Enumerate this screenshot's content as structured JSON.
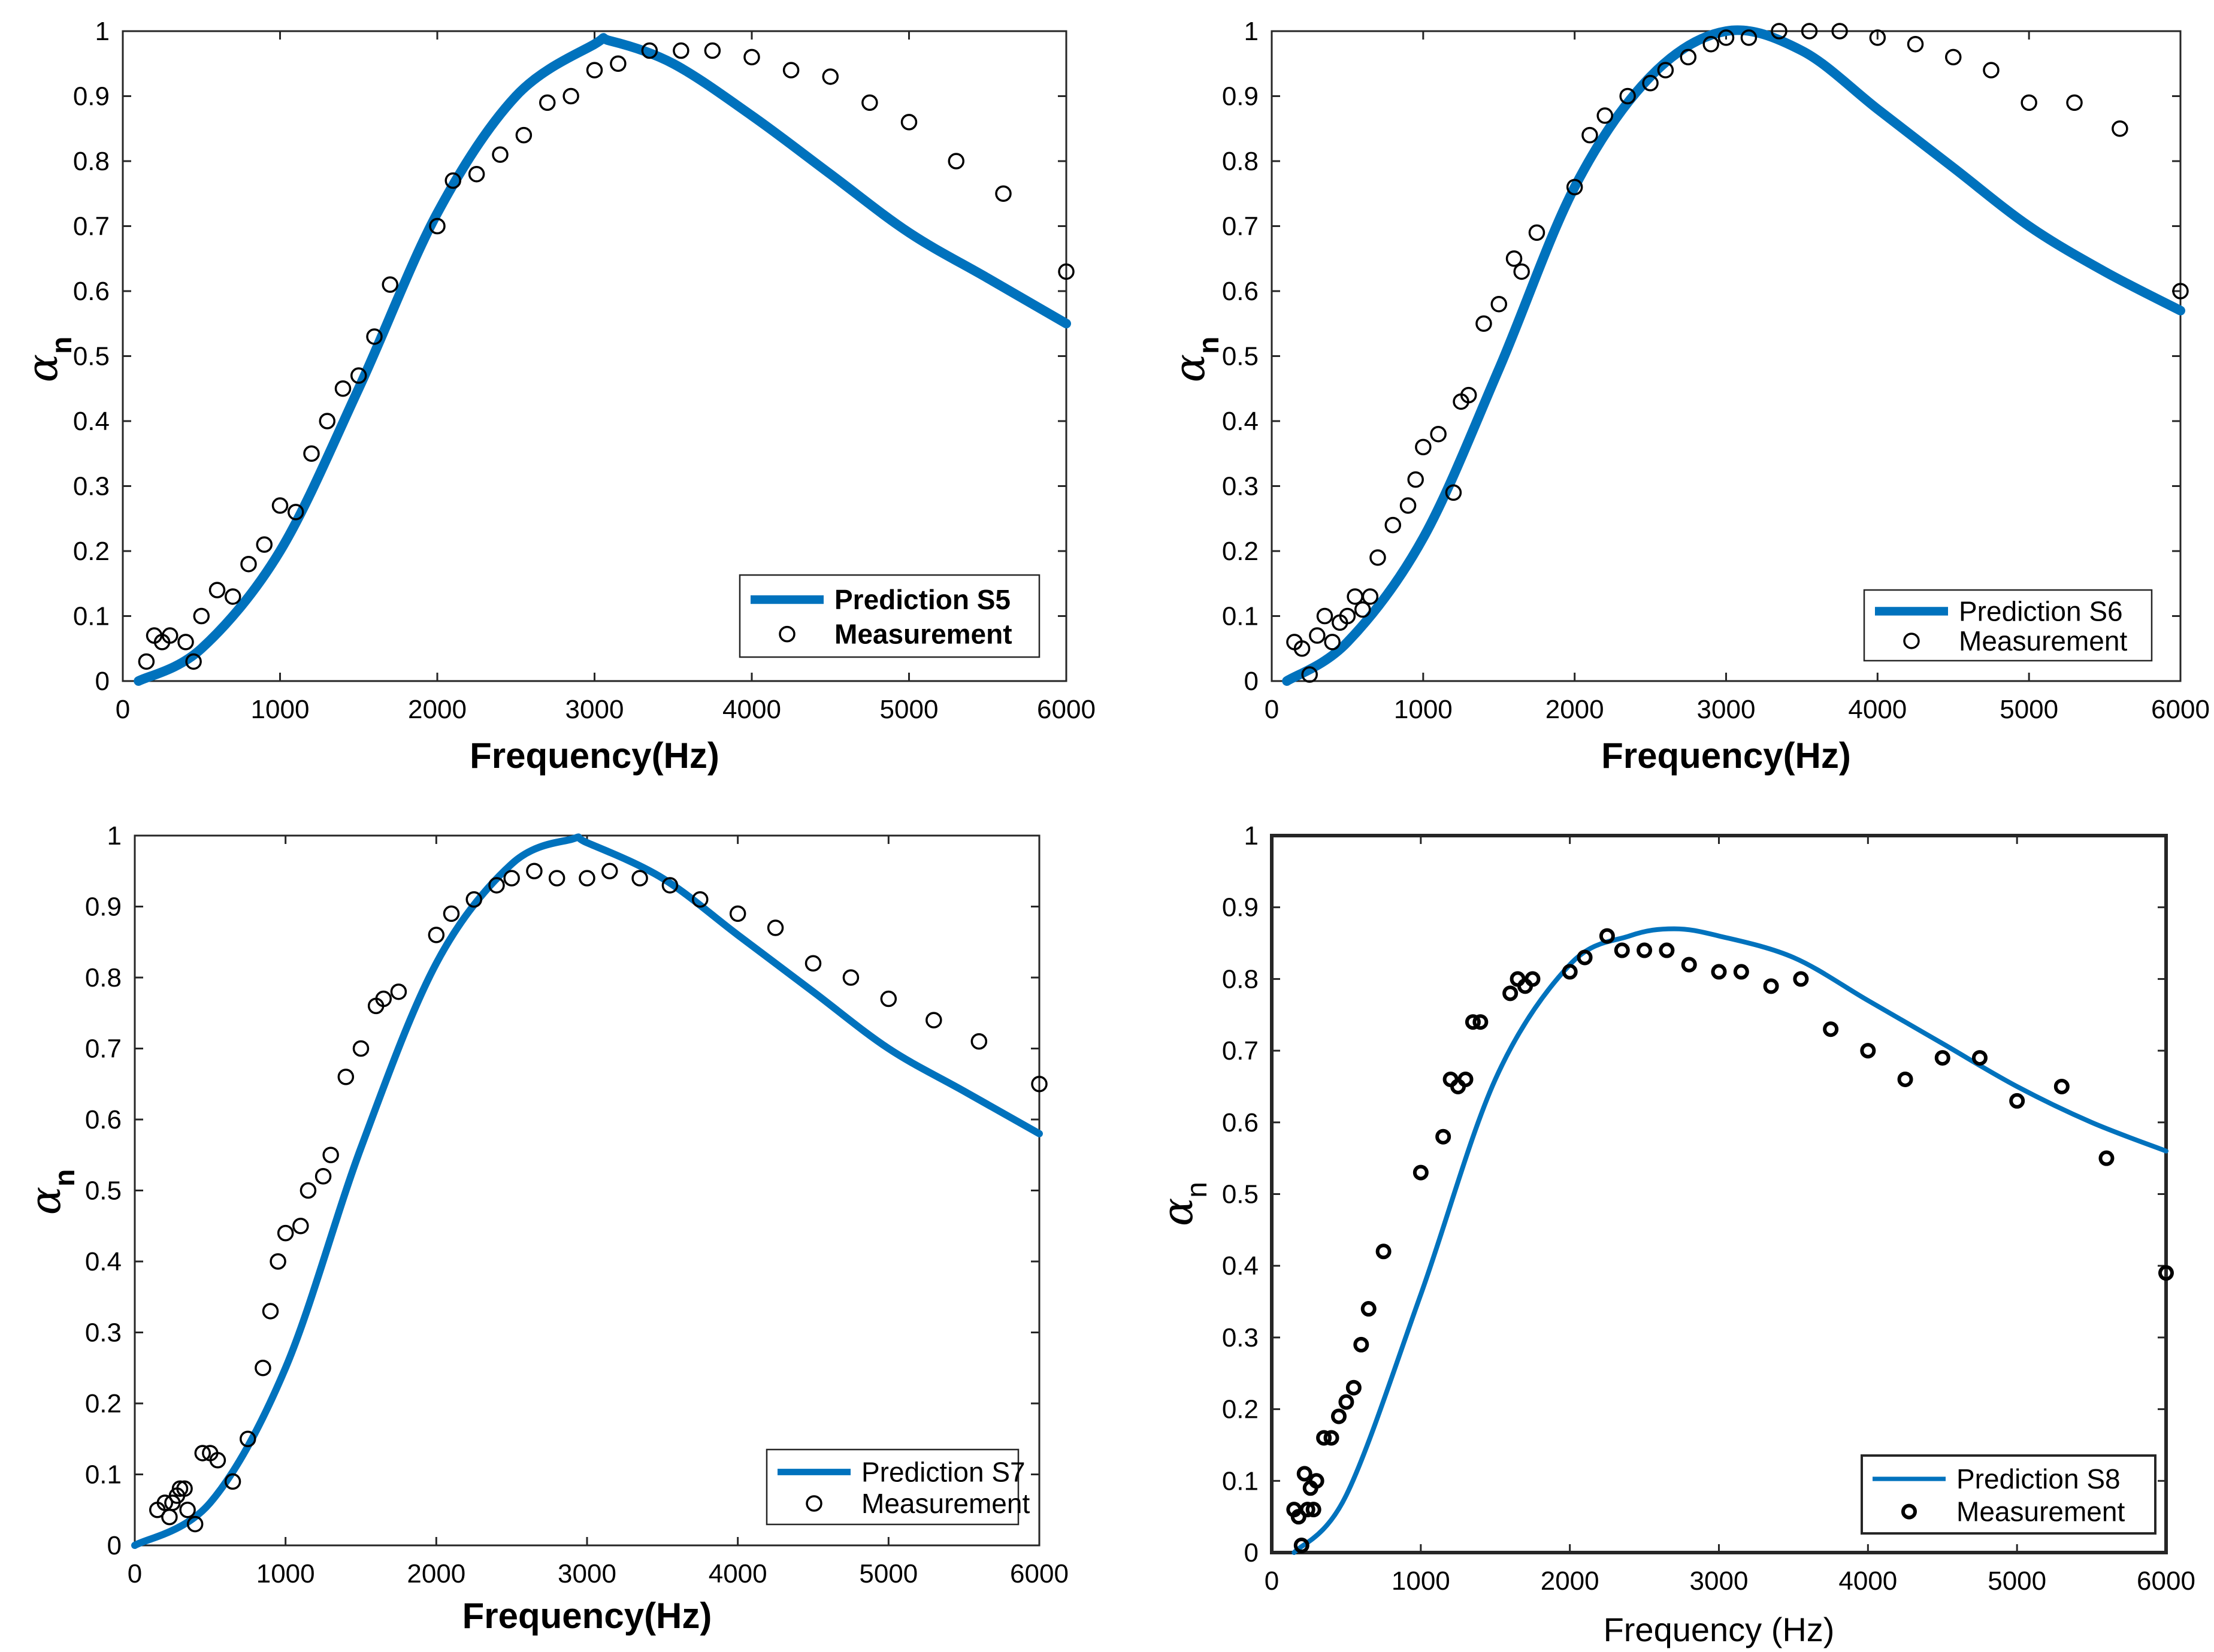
{
  "colors": {
    "prediction": "#0072BD",
    "measurement": "#000000",
    "axis": "#262626"
  },
  "chart_data": [
    {
      "type": "line",
      "title": "",
      "xlabel": "Frequency(Hz)",
      "ylabel_symbol": "α",
      "ylabel_sub": "n",
      "xlim": [
        0,
        6000
      ],
      "ylim": [
        0,
        1
      ],
      "xticks": [
        "0",
        "1000",
        "2000",
        "3000",
        "4000",
        "5000",
        "6000"
      ],
      "yticks": [
        "0",
        "0.1",
        "0.2",
        "0.3",
        "0.4",
        "0.5",
        "0.6",
        "0.7",
        "0.8",
        "0.9",
        "1"
      ],
      "legend": {
        "prediction": "Prediction S5",
        "measurement": "Measurement",
        "placement": "bottom-right"
      },
      "prediction": {
        "x": [
          100,
          500,
          1000,
          1500,
          2000,
          2500,
          3000,
          3100,
          3500,
          4000,
          4500,
          5000,
          5500,
          6000
        ],
        "y": [
          0.0,
          0.05,
          0.2,
          0.45,
          0.72,
          0.9,
          0.98,
          0.985,
          0.95,
          0.87,
          0.78,
          0.69,
          0.62,
          0.55
        ]
      },
      "measurement": {
        "x": [
          150,
          200,
          250,
          300,
          400,
          450,
          500,
          600,
          700,
          800,
          900,
          1000,
          1100,
          1200,
          1300,
          1400,
          1500,
          1600,
          1700,
          2000,
          2100,
          2250,
          2400,
          2550,
          2700,
          2850,
          3000,
          3150,
          3350,
          3550,
          3750,
          4000,
          4250,
          4500,
          4750,
          5000,
          5300,
          5600,
          6000
        ],
        "y": [
          0.03,
          0.07,
          0.06,
          0.07,
          0.06,
          0.03,
          0.1,
          0.14,
          0.13,
          0.18,
          0.21,
          0.27,
          0.26,
          0.35,
          0.4,
          0.45,
          0.47,
          0.53,
          0.61,
          0.7,
          0.77,
          0.78,
          0.81,
          0.84,
          0.89,
          0.9,
          0.94,
          0.95,
          0.97,
          0.97,
          0.97,
          0.96,
          0.94,
          0.93,
          0.89,
          0.86,
          0.8,
          0.75,
          0.63
        ]
      }
    },
    {
      "type": "line",
      "title": "",
      "xlabel": "Frequency(Hz)",
      "ylabel_symbol": "α",
      "ylabel_sub": "n",
      "xlim": [
        0,
        6000
      ],
      "ylim": [
        0,
        1
      ],
      "xticks": [
        "0",
        "1000",
        "2000",
        "3000",
        "4000",
        "5000",
        "6000"
      ],
      "yticks": [
        "0",
        "0.1",
        "0.2",
        "0.3",
        "0.4",
        "0.5",
        "0.6",
        "0.7",
        "0.8",
        "0.9",
        "1"
      ],
      "legend": {
        "prediction": "Prediction S6",
        "measurement": "Measurement",
        "placement": "bottom-right"
      },
      "prediction": {
        "x": [
          100,
          500,
          1000,
          1500,
          2000,
          2500,
          3000,
          3500,
          4000,
          4500,
          5000,
          5500,
          6000
        ],
        "y": [
          0.0,
          0.06,
          0.22,
          0.48,
          0.76,
          0.93,
          1.0,
          0.97,
          0.88,
          0.79,
          0.7,
          0.63,
          0.57
        ]
      },
      "measurement": {
        "x": [
          150,
          200,
          250,
          300,
          350,
          400,
          450,
          500,
          550,
          600,
          650,
          700,
          800,
          900,
          950,
          1000,
          1100,
          1200,
          1250,
          1300,
          1400,
          1500,
          1600,
          1650,
          1750,
          2000,
          2100,
          2200,
          2350,
          2500,
          2600,
          2750,
          2900,
          3000,
          3150,
          3350,
          3550,
          3750,
          4000,
          4250,
          4500,
          4750,
          5000,
          5300,
          5600,
          6000
        ],
        "y": [
          0.06,
          0.05,
          0.01,
          0.07,
          0.1,
          0.06,
          0.09,
          0.1,
          0.13,
          0.11,
          0.13,
          0.19,
          0.24,
          0.27,
          0.31,
          0.36,
          0.38,
          0.29,
          0.43,
          0.44,
          0.55,
          0.58,
          0.65,
          0.63,
          0.69,
          0.76,
          0.84,
          0.87,
          0.9,
          0.92,
          0.94,
          0.96,
          0.98,
          0.99,
          0.99,
          1.0,
          1.0,
          1.0,
          0.99,
          0.98,
          0.96,
          0.94,
          0.89,
          0.89,
          0.85,
          0.6
        ]
      }
    },
    {
      "type": "line",
      "title": "",
      "xlabel": "Frequency(Hz)",
      "ylabel_symbol": "α",
      "ylabel_sub": "n",
      "xlim": [
        0,
        6000
      ],
      "ylim": [
        0,
        1
      ],
      "xticks": [
        "0",
        "1000",
        "2000",
        "3000",
        "4000",
        "5000",
        "6000"
      ],
      "yticks": [
        "0",
        "0.1",
        "0.2",
        "0.3",
        "0.4",
        "0.5",
        "0.6",
        "0.7",
        "0.8",
        "0.9",
        "1"
      ],
      "legend": {
        "prediction": "Prediction S7",
        "measurement": "Measurement",
        "placement": "bottom-right"
      },
      "prediction": {
        "x": [
          0,
          500,
          1000,
          1500,
          2000,
          2500,
          2900,
          3000,
          3500,
          4000,
          4500,
          5000,
          5500,
          6000
        ],
        "y": [
          0.0,
          0.06,
          0.25,
          0.56,
          0.82,
          0.96,
          0.995,
          0.99,
          0.94,
          0.86,
          0.78,
          0.7,
          0.64,
          0.58
        ]
      },
      "measurement": {
        "x": [
          150,
          200,
          230,
          250,
          280,
          300,
          330,
          350,
          400,
          450,
          500,
          550,
          650,
          750,
          850,
          900,
          950,
          1000,
          1100,
          1150,
          1250,
          1300,
          1400,
          1500,
          1600,
          1650,
          1750,
          2000,
          2100,
          2250,
          2400,
          2500,
          2650,
          2800,
          3000,
          3150,
          3350,
          3550,
          3750,
          4000,
          4250,
          4500,
          4750,
          5000,
          5300,
          5600,
          6000
        ],
        "y": [
          0.05,
          0.06,
          0.04,
          0.06,
          0.07,
          0.08,
          0.08,
          0.05,
          0.03,
          0.13,
          0.13,
          0.12,
          0.09,
          0.15,
          0.25,
          0.33,
          0.4,
          0.44,
          0.45,
          0.5,
          0.52,
          0.55,
          0.66,
          0.7,
          0.76,
          0.77,
          0.78,
          0.86,
          0.89,
          0.91,
          0.93,
          0.94,
          0.95,
          0.94,
          0.94,
          0.95,
          0.94,
          0.93,
          0.91,
          0.89,
          0.87,
          0.82,
          0.8,
          0.77,
          0.74,
          0.71,
          0.65
        ]
      }
    },
    {
      "type": "line",
      "title": "",
      "xlabel": "Frequency (Hz)",
      "ylabel_symbol": "α",
      "ylabel_sub": "n",
      "xlim": [
        0,
        6000
      ],
      "ylim": [
        0,
        1
      ],
      "xticks": [
        "0",
        "1000",
        "2000",
        "3000",
        "4000",
        "5000",
        "6000"
      ],
      "yticks": [
        "0",
        "0.1",
        "0.2",
        "0.3",
        "0.4",
        "0.5",
        "0.6",
        "0.7",
        "0.8",
        "0.9",
        "1"
      ],
      "legend": {
        "prediction": "Prediction S8",
        "measurement": "Measurement",
        "placement": "bottom-right"
      },
      "prediction": {
        "x": [
          150,
          500,
          1000,
          1500,
          2000,
          2400,
          2700,
          3000,
          3500,
          4000,
          4500,
          5000,
          5500,
          6000
        ],
        "y": [
          0.0,
          0.08,
          0.36,
          0.66,
          0.82,
          0.86,
          0.87,
          0.86,
          0.83,
          0.77,
          0.71,
          0.65,
          0.6,
          0.56
        ]
      },
      "measurement": {
        "x": [
          150,
          180,
          200,
          220,
          240,
          260,
          280,
          300,
          350,
          400,
          450,
          500,
          550,
          600,
          650,
          750,
          1000,
          1150,
          1200,
          1250,
          1300,
          1350,
          1400,
          1600,
          1650,
          1700,
          1750,
          2000,
          2100,
          2250,
          2350,
          2500,
          2650,
          2800,
          3000,
          3150,
          3350,
          3550,
          3750,
          4000,
          4250,
          4500,
          4750,
          5000,
          5300,
          5600,
          6000
        ],
        "y": [
          0.06,
          0.05,
          0.01,
          0.11,
          0.06,
          0.09,
          0.06,
          0.1,
          0.16,
          0.16,
          0.19,
          0.21,
          0.23,
          0.29,
          0.34,
          0.42,
          0.53,
          0.58,
          0.66,
          0.65,
          0.66,
          0.74,
          0.74,
          0.78,
          0.8,
          0.79,
          0.8,
          0.81,
          0.83,
          0.86,
          0.84,
          0.84,
          0.84,
          0.82,
          0.81,
          0.81,
          0.79,
          0.8,
          0.73,
          0.7,
          0.66,
          0.69,
          0.69,
          0.63,
          0.65,
          0.55,
          0.39
        ]
      }
    }
  ]
}
